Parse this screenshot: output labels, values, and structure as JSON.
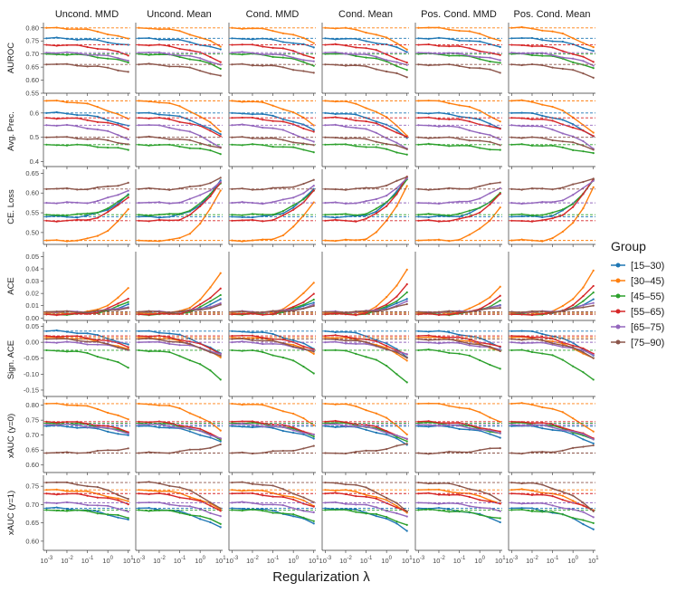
{
  "chart_data": {
    "type": "line",
    "xlabel": "Regularization λ",
    "x_ticks": [
      "-3",
      "-2",
      "-1",
      "0",
      "1"
    ],
    "x_tick_base": "10",
    "x": [
      -3,
      -2.5,
      -2,
      -1.5,
      -1,
      -0.5,
      0,
      0.5,
      1
    ],
    "columns": [
      "Uncond. MMD",
      "Uncond. Mean",
      "Cond. MMD",
      "Cond. Mean",
      "Pos. Cond. MMD",
      "Pos. Cond. Mean"
    ],
    "legend": {
      "title": "Group",
      "entries": [
        "[15–30)",
        "[30–45)",
        "[45–55)",
        "[55–65)",
        "[65–75)",
        "[75–90)"
      ],
      "colors": [
        "#1f77b4",
        "#ff7f0e",
        "#2ca02c",
        "#d62728",
        "#9467bd",
        "#8c564b"
      ]
    },
    "rows": [
      {
        "label": "AUROC",
        "ylim": [
          0.55,
          0.82
        ],
        "yticks": [
          "0.55",
          "0.60",
          "0.65",
          "0.70",
          "0.75",
          "0.80"
        ],
        "ytick_values": [
          0.55,
          0.6,
          0.65,
          0.7,
          0.75,
          0.8
        ],
        "baselines": [
          0.76,
          0.8,
          0.7,
          0.735,
          0.705,
          0.66
        ],
        "trend": "down",
        "delta": [
          0.05,
          0.08,
          0.06,
          0.07,
          0.05,
          0.05
        ]
      },
      {
        "label": "Avg. Prec.",
        "ylim": [
          0.38,
          0.67
        ],
        "yticks": [
          "0.4",
          "0.5",
          "0.6"
        ],
        "ytick_values": [
          0.4,
          0.5,
          0.6
        ],
        "baselines": [
          0.6,
          0.65,
          0.47,
          0.58,
          0.55,
          0.5
        ],
        "trend": "down",
        "delta": [
          0.1,
          0.14,
          0.04,
          0.08,
          0.1,
          0.05
        ]
      },
      {
        "label": "CE. Loss",
        "ylim": [
          0.47,
          0.66
        ],
        "yticks": [
          "0.50",
          "0.55",
          "0.60",
          "0.65"
        ],
        "ytick_values": [
          0.5,
          0.55,
          0.6,
          0.65
        ],
        "baselines": [
          0.54,
          0.48,
          0.545,
          0.53,
          0.575,
          0.61
        ],
        "trend": "up_end",
        "delta": [
          0.1,
          0.14,
          0.09,
          0.11,
          0.06,
          0.03
        ]
      },
      {
        "label": "ACE",
        "ylim": [
          -0.002,
          0.054
        ],
        "yticks": [
          "0.00",
          "0.01",
          "0.02",
          "0.03",
          "0.04",
          "0.05"
        ],
        "ytick_values": [
          0,
          0.01,
          0.02,
          0.03,
          0.04,
          0.05
        ],
        "baselines": [
          0.004,
          0.004,
          0.003,
          0.003,
          0.005,
          0.005
        ],
        "trend": "up_end",
        "delta": [
          0.012,
          0.036,
          0.018,
          0.024,
          0.008,
          0.006
        ]
      },
      {
        "label": "Sign. ACE",
        "ylim": [
          -0.17,
          0.06
        ],
        "yticks": [
          "-0.15",
          "-0.10",
          "-0.05",
          "0.00",
          "0.05"
        ],
        "ytick_values": [
          -0.15,
          -0.1,
          -0.05,
          0,
          0.05
        ],
        "baselines": [
          0.035,
          0.015,
          -0.025,
          0.02,
          0.0,
          0.01
        ],
        "trend": "down",
        "delta": [
          0.08,
          0.07,
          0.1,
          0.06,
          0.04,
          0.06
        ]
      },
      {
        "label": "xAUC (y=0)",
        "ylim": [
          0.575,
          0.82
        ],
        "yticks": [
          "0.60",
          "0.65",
          "0.70",
          "0.75",
          "0.80"
        ],
        "ytick_values": [
          0.6,
          0.65,
          0.7,
          0.75,
          0.8
        ],
        "baselines": [
          0.73,
          0.805,
          0.74,
          0.745,
          0.735,
          0.64
        ],
        "trend": "down",
        "delta": [
          0.06,
          0.1,
          0.06,
          0.06,
          0.05,
          -0.03
        ]
      },
      {
        "label": "xAUC (y=1)",
        "ylim": [
          0.575,
          0.78
        ],
        "yticks": [
          "0.60",
          "0.65",
          "0.70",
          "0.75"
        ],
        "ytick_values": [
          0.6,
          0.65,
          0.7,
          0.75
        ],
        "baselines": [
          0.69,
          0.74,
          0.685,
          0.73,
          0.705,
          0.76
        ],
        "trend": "down",
        "delta": [
          0.06,
          0.06,
          0.04,
          0.05,
          0.04,
          0.08
        ]
      }
    ]
  }
}
